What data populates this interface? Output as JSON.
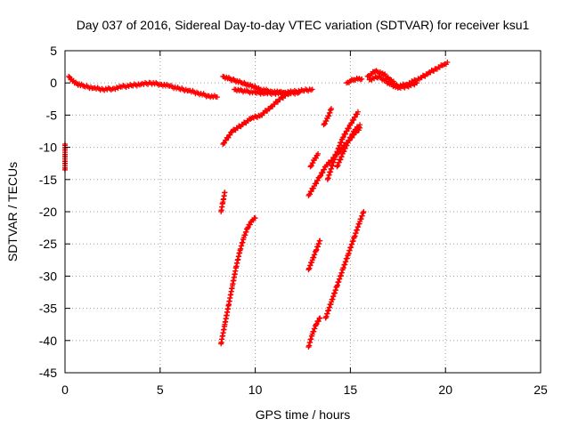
{
  "chart_data": {
    "type": "scatter",
    "title": "Day 037 of 2016, Sidereal Day-to-day VTEC variation (SDTVAR) for receiver ksu1",
    "xlabel": "GPS time / hours",
    "ylabel": "SDTVAR / TECUs",
    "xlim": [
      0,
      25
    ],
    "ylim": [
      -45,
      5
    ],
    "xticks": [
      0,
      5,
      10,
      15,
      20,
      25
    ],
    "yticks": [
      5,
      0,
      -5,
      -10,
      -15,
      -20,
      -25,
      -30,
      -35,
      -40,
      -45
    ],
    "grid": true,
    "marker": "plus",
    "color": "#ff0000",
    "series": [
      {
        "x": [
          0.2,
          0.5,
          1.0,
          1.5,
          2.0,
          2.5,
          3.0,
          3.5,
          4.0,
          4.5,
          5.0,
          5.5,
          6.0,
          6.5,
          7.0,
          7.5,
          8.0
        ],
        "y": [
          1.0,
          0.0,
          -0.5,
          -0.8,
          -1.0,
          -0.9,
          -0.6,
          -0.4,
          -0.2,
          0.0,
          -0.2,
          -0.5,
          -0.9,
          -1.2,
          -1.6,
          -2.0,
          -2.2
        ]
      },
      {
        "x": [
          8.3,
          8.8,
          9.3,
          9.8,
          10.3,
          10.8,
          11.3,
          11.8,
          12.3
        ],
        "y": [
          1.0,
          0.5,
          0.0,
          -0.5,
          -1.0,
          -1.3,
          -1.5,
          -1.6,
          -1.5
        ]
      },
      {
        "x": [
          8.9,
          9.5,
          10.0,
          10.5,
          11.0,
          11.5,
          12.0,
          12.5,
          13.0
        ],
        "y": [
          -1.0,
          -1.3,
          -1.5,
          -1.6,
          -1.6,
          -1.5,
          -1.4,
          -1.2,
          -1.0
        ]
      },
      {
        "x": [
          8.3,
          8.8,
          9.3,
          9.8,
          10.3,
          10.8,
          11.3,
          11.8
        ],
        "y": [
          -9.5,
          -7.5,
          -6.5,
          -5.5,
          -5.0,
          -3.8,
          -2.5,
          -1.5
        ]
      },
      {
        "x": [
          8.2,
          8.4,
          8.6,
          8.8,
          9.0,
          9.2,
          9.4,
          9.6,
          9.8,
          10.0
        ],
        "y": [
          -40.5,
          -37.5,
          -34.5,
          -31.5,
          -28.5,
          -26.0,
          -24.0,
          -22.5,
          -21.5,
          -21.0
        ]
      },
      {
        "x": [
          8.2,
          8.3,
          8.4
        ],
        "y": [
          -20.0,
          -18.5,
          -17.0
        ]
      },
      {
        "x": [
          12.8,
          13.0,
          13.2,
          13.4
        ],
        "y": [
          -41.0,
          -39.0,
          -37.5,
          -36.5
        ]
      },
      {
        "x": [
          12.8,
          13.0,
          13.2,
          13.4
        ],
        "y": [
          -29.0,
          -27.5,
          -26.0,
          -24.5
        ]
      },
      {
        "x": [
          12.8,
          13.1,
          13.4,
          13.7,
          14.0,
          14.3,
          14.6,
          14.9,
          15.2,
          15.5
        ],
        "y": [
          -17.5,
          -16.0,
          -14.5,
          -13.0,
          -12.0,
          -11.0,
          -10.0,
          -9.0,
          -8.0,
          -7.0
        ]
      },
      {
        "x": [
          12.9,
          13.1,
          13.3
        ],
        "y": [
          -13.0,
          -12.0,
          -11.0
        ]
      },
      {
        "x": [
          13.6,
          13.8,
          14.0
        ],
        "y": [
          -6.5,
          -5.5,
          -4.0
        ]
      },
      {
        "x": [
          13.8,
          14.2,
          14.6,
          15.0,
          15.4
        ],
        "y": [
          -15.0,
          -11.5,
          -8.5,
          -6.5,
          -4.5
        ]
      },
      {
        "x": [
          14.3,
          14.6,
          14.9,
          15.2,
          15.5
        ],
        "y": [
          -13.0,
          -11.0,
          -9.0,
          -7.5,
          -6.5
        ]
      },
      {
        "x": [
          13.7,
          14.0,
          14.3,
          14.6,
          14.9,
          15.2,
          15.5,
          15.7
        ],
        "y": [
          -36.5,
          -34.0,
          -31.5,
          -29.0,
          -26.5,
          -24.0,
          -21.5,
          -20.0
        ]
      },
      {
        "x": [
          14.8,
          15.0,
          15.2,
          15.4,
          15.6
        ],
        "y": [
          0.0,
          0.3,
          0.5,
          0.6,
          0.6
        ]
      },
      {
        "x": [
          15.9,
          16.3,
          16.7,
          17.1,
          17.5,
          17.9,
          18.3,
          18.7,
          19.1,
          19.5,
          19.9,
          20.1
        ],
        "y": [
          1.0,
          1.8,
          1.5,
          0.5,
          -0.5,
          -0.3,
          0.2,
          0.8,
          1.5,
          2.2,
          2.8,
          3.2
        ]
      },
      {
        "x": [
          16.0,
          16.5,
          17.0,
          17.5,
          18.0,
          18.5
        ],
        "y": [
          0.5,
          1.0,
          0.0,
          -0.8,
          -0.5,
          0.0
        ]
      },
      {
        "x": [
          0.0,
          0.0
        ],
        "y": [
          -9.5,
          -13.5
        ]
      }
    ]
  }
}
